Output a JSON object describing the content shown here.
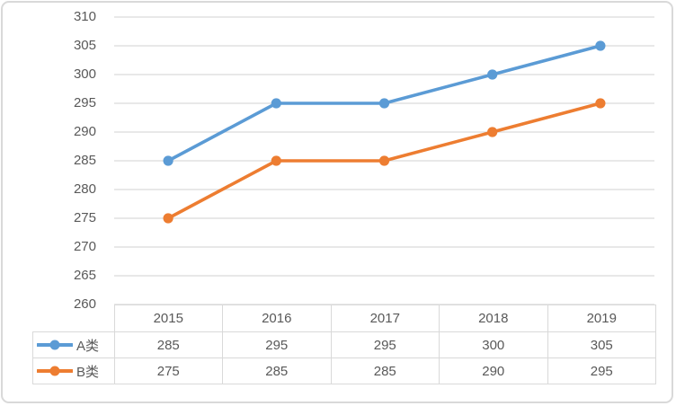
{
  "colors": {
    "series_a": "#5b9bd5",
    "series_b": "#ed7d31",
    "gridline": "#d9d9d9",
    "axis_text": "#595959",
    "table_border": "#d9d9d9",
    "table_text": "#595959",
    "card_border": "#d9d9d9",
    "background": "#ffffff"
  },
  "chart_data": {
    "type": "line",
    "title": "",
    "xlabel": "",
    "ylabel": "",
    "categories": [
      "2015",
      "2016",
      "2017",
      "2018",
      "2019"
    ],
    "series": [
      {
        "name": "A类",
        "values": [
          285,
          295,
          295,
          300,
          305
        ],
        "color": "#5b9bd5"
      },
      {
        "name": "B类",
        "values": [
          275,
          285,
          285,
          290,
          295
        ],
        "color": "#ed7d31"
      }
    ],
    "ylim": [
      260,
      310
    ],
    "yticks": [
      260,
      265,
      270,
      275,
      280,
      285,
      290,
      295,
      300,
      305,
      310
    ],
    "grid": true,
    "marker": "circle",
    "legend_position": "data-table-left",
    "data_table": true
  }
}
